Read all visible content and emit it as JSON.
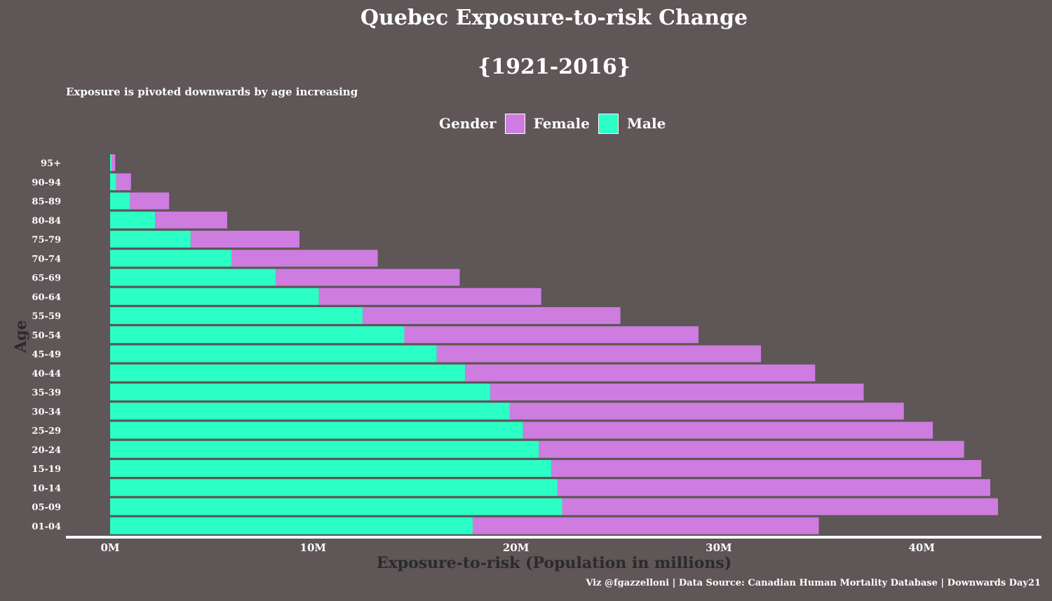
{
  "chart_data": {
    "type": "bar",
    "orientation": "horizontal",
    "stacked": true,
    "title": "Quebec Exposure-to-risk Change",
    "title_line2": "{1921-2016}",
    "subtitle": "Exposure is pivoted downwards by age increasing",
    "xlabel": "Exposure-to-risk (Population in millions)",
    "ylabel": "Age",
    "xlim": [
      0,
      45
    ],
    "xticks": [
      0,
      10,
      20,
      30,
      40
    ],
    "xtick_labels": [
      "0M",
      "10M",
      "20M",
      "30M",
      "40M"
    ],
    "categories": [
      "95+",
      "90-94",
      "85-89",
      "80-84",
      "75-79",
      "70-74",
      "65-69",
      "60-64",
      "55-59",
      "50-54",
      "45-49",
      "40-44",
      "35-39",
      "30-34",
      "25-29",
      "20-24",
      "15-19",
      "10-14",
      "05-09",
      "01-04"
    ],
    "series": [
      {
        "name": "Male",
        "color": "#2bffc6",
        "values": [
          0.07,
          0.3,
          0.98,
          2.22,
          3.97,
          5.98,
          8.17,
          10.29,
          12.45,
          14.5,
          16.1,
          17.5,
          18.74,
          19.7,
          20.35,
          21.13,
          21.75,
          22.05,
          22.28,
          17.87
        ]
      },
      {
        "name": "Female",
        "color": "#ce7ce0",
        "values": [
          0.18,
          0.73,
          1.93,
          3.55,
          5.36,
          7.21,
          9.06,
          10.96,
          12.7,
          14.5,
          15.98,
          17.25,
          18.4,
          19.42,
          20.2,
          20.96,
          21.19,
          21.33,
          21.48,
          17.06
        ]
      }
    ],
    "legend": {
      "title": "Gender",
      "position": "top",
      "entries": [
        "Female",
        "Male"
      ]
    },
    "grid": false,
    "colors": {
      "background": "#5e5657",
      "axis_line": "#ffffff",
      "axis_text": "#ffffff",
      "axis_title": "#2b2b2b"
    }
  },
  "caption": "Viz @fgazzelloni | Data Source: Canadian Human Mortality Database | Downwards Day21"
}
